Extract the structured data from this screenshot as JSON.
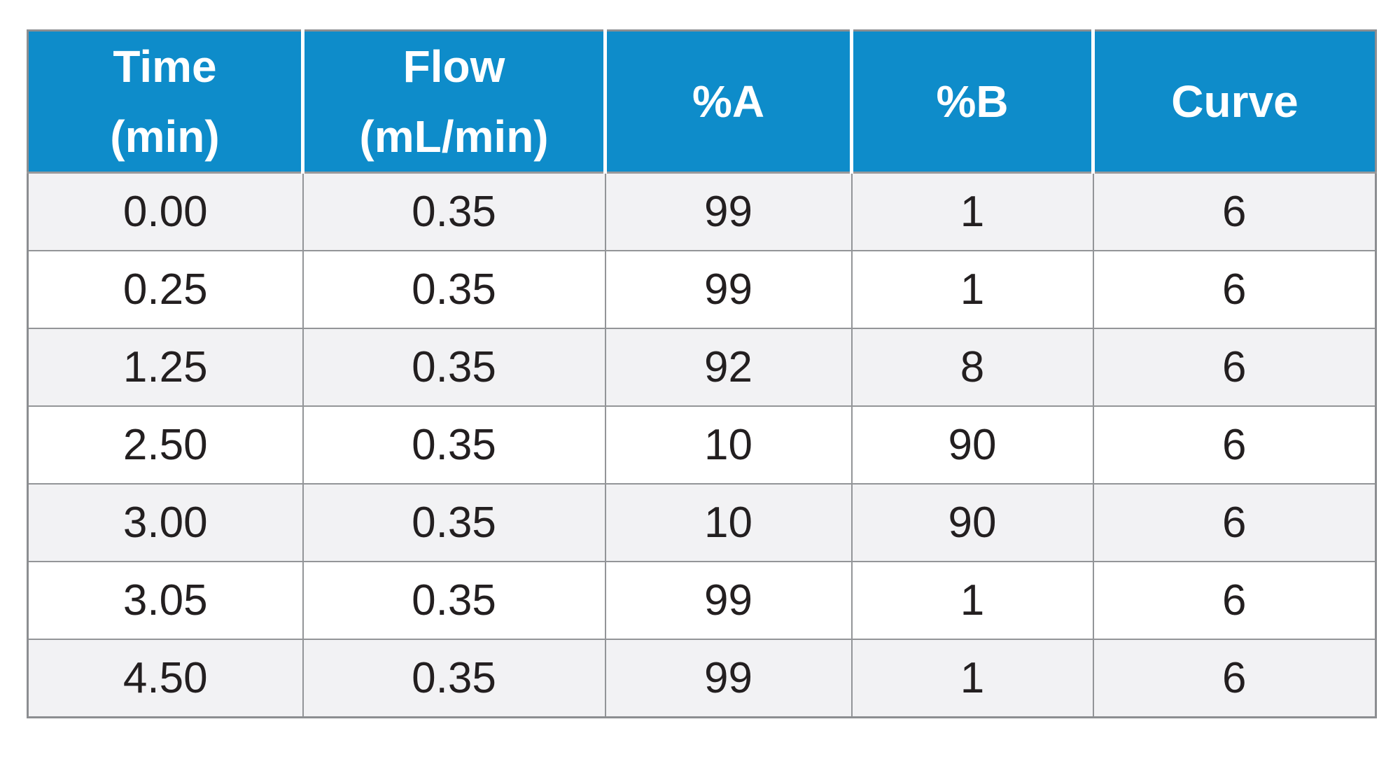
{
  "table": {
    "headers": [
      "Time\n(min)",
      "Flow\n(mL/min)",
      "%A",
      "%B",
      "Curve"
    ],
    "rows": [
      [
        "0.00",
        "0.35",
        "99",
        "1",
        "6"
      ],
      [
        "0.25",
        "0.35",
        "99",
        "1",
        "6"
      ],
      [
        "1.25",
        "0.35",
        "92",
        "8",
        "6"
      ],
      [
        "2.50",
        "0.35",
        "10",
        "90",
        "6"
      ],
      [
        "3.00",
        "0.35",
        "10",
        "90",
        "6"
      ],
      [
        "3.05",
        "0.35",
        "99",
        "1",
        "6"
      ],
      [
        "4.50",
        "0.35",
        "99",
        "1",
        "6"
      ]
    ]
  },
  "colors": {
    "header_bg": "#0e8cca",
    "header_text": "#ffffff",
    "row_stripe": "#f2f2f4",
    "row_plain": "#ffffff",
    "grid_line": "#939598",
    "outer_border": "#8c8e91",
    "body_text": "#231f20"
  },
  "chart_data": {
    "type": "table",
    "columns": [
      "Time (min)",
      "Flow (mL/min)",
      "%A",
      "%B",
      "Curve"
    ],
    "rows": [
      [
        0.0,
        0.35,
        99,
        1,
        6
      ],
      [
        0.25,
        0.35,
        99,
        1,
        6
      ],
      [
        1.25,
        0.35,
        92,
        8,
        6
      ],
      [
        2.5,
        0.35,
        10,
        90,
        6
      ],
      [
        3.0,
        0.35,
        10,
        90,
        6
      ],
      [
        3.05,
        0.35,
        99,
        1,
        6
      ],
      [
        4.5,
        0.35,
        99,
        1,
        6
      ]
    ]
  }
}
